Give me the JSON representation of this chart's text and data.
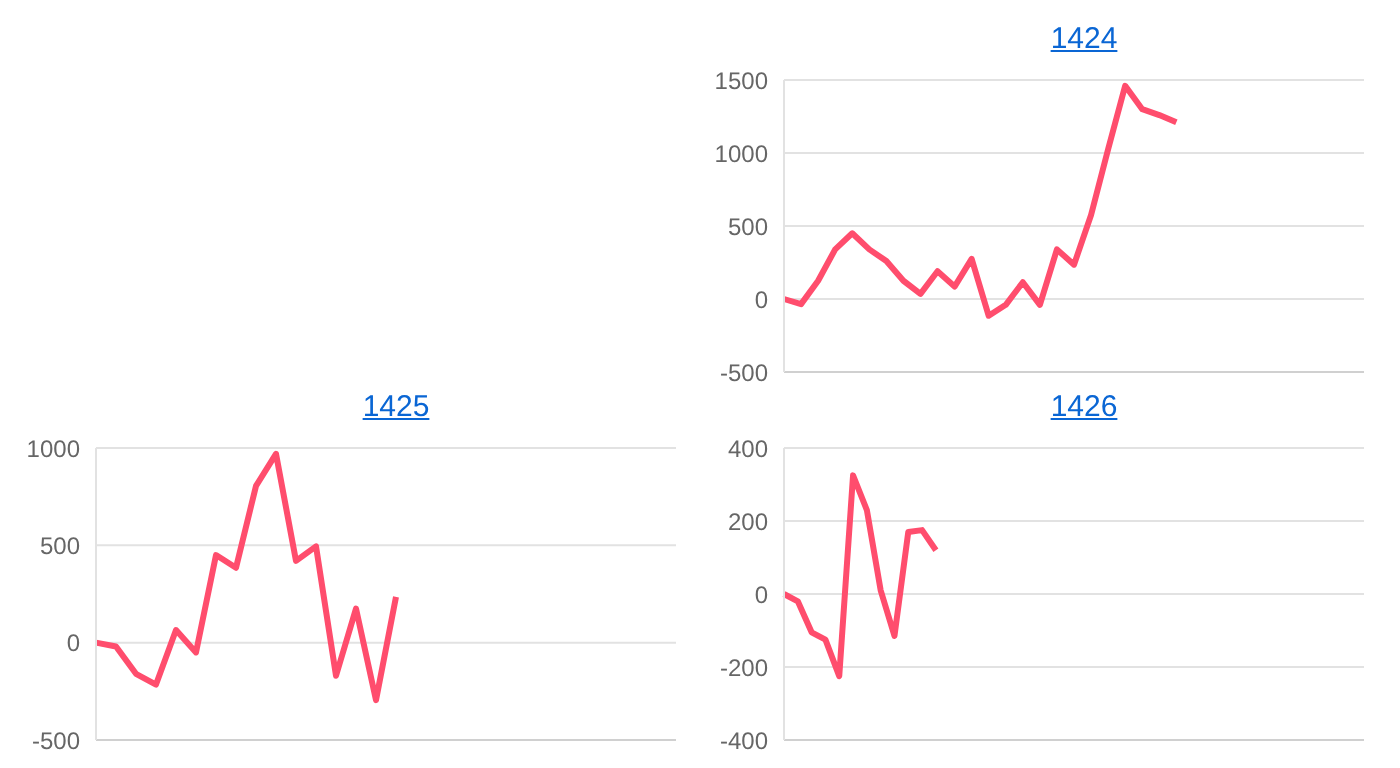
{
  "chart_data": [
    {
      "type": "line",
      "title": "1424",
      "categories": [
        null,
        null,
        null,
        null,
        null,
        null,
        null,
        null,
        null,
        null,
        null,
        null,
        null,
        null,
        null,
        null,
        null,
        null,
        null,
        null,
        null,
        null,
        null,
        null,
        null,
        null,
        null,
        null,
        null,
        null,
        null,
        null,
        null,
        null,
        null
      ],
      "series": [
        {
          "color": "#ff4d6d",
          "values": [
            0,
            -35,
            125,
            340,
            450,
            340,
            260,
            125,
            35,
            190,
            85,
            275,
            -115,
            -40,
            115,
            -40,
            340,
            235,
            575,
            1025,
            1460,
            1300,
            1260,
            1210,
            null,
            null,
            null,
            null,
            null,
            null,
            null,
            null,
            null,
            null,
            null
          ]
        }
      ],
      "ylim": [
        -500,
        1500
      ],
      "yticks": [
        -500,
        0,
        500,
        1000,
        1500
      ],
      "grid": "y",
      "tick_labels": "y",
      "legend": false
    },
    {
      "type": "line",
      "title": "1425",
      "categories": [
        null,
        null,
        null,
        null,
        null,
        null,
        null,
        null,
        null,
        null,
        null,
        null,
        null,
        null,
        null,
        null,
        null,
        null,
        null,
        null,
        null,
        null,
        null,
        null,
        null,
        null,
        null,
        null,
        null,
        null
      ],
      "series": [
        {
          "color": "#ff4d6d",
          "values": [
            0,
            -20,
            -160,
            -215,
            65,
            -50,
            450,
            385,
            805,
            970,
            420,
            495,
            -170,
            175,
            -295,
            235,
            null,
            null,
            null,
            null,
            null,
            null,
            null,
            null,
            null,
            null,
            null,
            null,
            null,
            null
          ]
        }
      ],
      "ylim": [
        -500,
        1000
      ],
      "yticks": [
        -500,
        0,
        500,
        1000
      ],
      "grid": "y",
      "tick_labels": "y",
      "legend": false
    },
    {
      "type": "line",
      "title": "1426",
      "categories": [
        null,
        null,
        null,
        null,
        null,
        null,
        null,
        null,
        null,
        null,
        null,
        null,
        null,
        null,
        null,
        null,
        null,
        null,
        null,
        null,
        null,
        null,
        null,
        null,
        null,
        null,
        null,
        null,
        null,
        null,
        null,
        null,
        null,
        null,
        null,
        null,
        null,
        null,
        null,
        null,
        null,
        null,
        null
      ],
      "series": [
        {
          "color": "#ff4d6d",
          "values": [
            0,
            -20,
            -105,
            -125,
            -225,
            325,
            230,
            10,
            -115,
            170,
            175,
            120,
            null,
            null,
            null,
            null,
            null,
            null,
            null,
            null,
            null,
            null,
            null,
            null,
            null,
            null,
            null,
            null,
            null,
            null,
            null,
            null,
            null,
            null,
            null,
            null,
            null,
            null,
            null,
            null,
            null,
            null,
            null
          ]
        }
      ],
      "ylim": [
        -400,
        400
      ],
      "yticks": [
        -400,
        -200,
        0,
        200,
        400
      ],
      "grid": "y",
      "tick_labels": "y",
      "legend": false
    }
  ]
}
